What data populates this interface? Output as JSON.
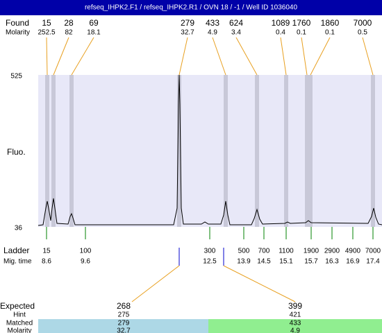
{
  "title": "refseq_IHPK2.F1 / refseq_IHPK2.R1 / OVN 18 / -1 / Well ID 1036040",
  "found": {
    "label": "Found",
    "molarity_label": "Molarity",
    "peaks": [
      {
        "size": 15,
        "molarity": 252.5
      },
      {
        "size": 28,
        "molarity": 82
      },
      {
        "size": 69,
        "molarity": 18.1
      },
      {
        "size": 279,
        "molarity": 32.7
      },
      {
        "size": 433,
        "molarity": 4.9
      },
      {
        "size": 624,
        "molarity": 3.4
      },
      {
        "size": 1089,
        "molarity": 0.4
      },
      {
        "size": 1760,
        "molarity": 0.1
      },
      {
        "size": 1860,
        "molarity": 0.1
      },
      {
        "size": 7000,
        "molarity": 0.5
      }
    ]
  },
  "y_axis": {
    "max": 525,
    "min": 36,
    "label": "Fluo."
  },
  "ladder": {
    "label": "Ladder",
    "time_label": "Mig. time",
    "items": [
      {
        "size": 15,
        "time": 8.6
      },
      {
        "size": 100,
        "time": 9.6
      },
      {
        "size": 300,
        "time": 12.5
      },
      {
        "size": 500,
        "time": 13.9
      },
      {
        "size": 700,
        "time": 14.5
      },
      {
        "size": 1100,
        "time": 15.1
      },
      {
        "size": 1900,
        "time": 15.7
      },
      {
        "size": 2900,
        "time": 16.3
      },
      {
        "size": 4900,
        "time": 16.9
      },
      {
        "size": 7000,
        "time": 17.4
      }
    ]
  },
  "expected": {
    "label": "Expected",
    "hint_label": "Hint",
    "matched_label": "Matched",
    "molarity_label": "Molarity",
    "columns": [
      {
        "expected": 268,
        "hint": 275,
        "matched": 279,
        "molarity": 32.7
      },
      {
        "expected": 399,
        "hint": 421,
        "matched": 433,
        "molarity": 4.9
      }
    ]
  }
}
